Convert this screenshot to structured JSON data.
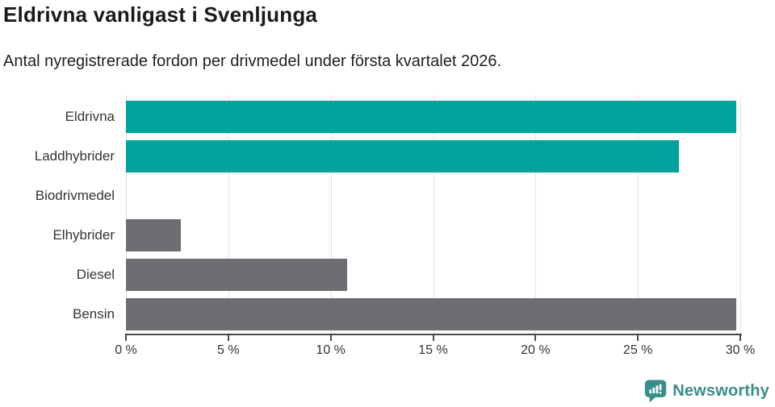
{
  "header": {
    "title": "Eldrivna vanligast i Svenljunga",
    "subtitle": "Antal nyregistrerade fordon per drivmedel under första kvartalet 2026."
  },
  "chart_data": {
    "type": "bar",
    "orientation": "horizontal",
    "title": "Eldrivna vanligast i Svenljunga",
    "subtitle": "Antal nyregistrerade fordon per drivmedel under första kvartalet 2026.",
    "xlabel": "",
    "ylabel": "",
    "categories": [
      "Eldrivna",
      "Laddhybrider",
      "Biodrivmedel",
      "Elhybrider",
      "Diesel",
      "Bensin"
    ],
    "values": [
      29.8,
      27.0,
      0,
      2.7,
      10.8,
      29.8
    ],
    "unit": "%",
    "bar_colors": [
      "#00a29b",
      "#00a29b",
      "#6d6d73",
      "#6d6d73",
      "#6d6d73",
      "#6d6d73"
    ],
    "highlight_color": "#00a29b",
    "default_color": "#6d6d73",
    "xlim": [
      0,
      30
    ],
    "x_ticks": [
      0,
      5,
      10,
      15,
      20,
      25,
      30
    ],
    "x_tick_suffix": " %",
    "grid": true,
    "legend": "none"
  },
  "colors": {
    "grid": "#e4e4e4",
    "axis": "#4a4a4a",
    "text": "#333333",
    "title": "#1a1a1a",
    "brand": "#3a8e89"
  },
  "branding": {
    "logo_text": "Newsworthy",
    "logo_icon": "bar-chart-speech-bubble-icon"
  }
}
